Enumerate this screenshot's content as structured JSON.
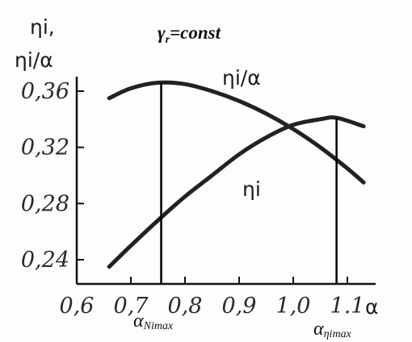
{
  "chart_data": {
    "type": "line",
    "title": "γr=const",
    "title_main": "γ",
    "title_sub": "r",
    "title_rest": "=const",
    "ylabel_line1": "ηi,",
    "ylabel_line2": "ηi/α",
    "xlabel": "α",
    "x_ticks": [
      "0,6",
      "0,7",
      "0,8",
      "0,9",
      "1,0",
      "1.1"
    ],
    "x_tick_values": [
      0.6,
      0.7,
      0.8,
      0.9,
      1.0,
      1.1
    ],
    "y_ticks": [
      "0,36",
      "0,32",
      "0,28",
      "0,24"
    ],
    "y_tick_values": [
      0.36,
      0.32,
      0.28,
      0.24
    ],
    "xlim": [
      0.6,
      1.15
    ],
    "ylim": [
      0.22,
      0.38
    ],
    "grid": false,
    "series": [
      {
        "name": "ηi/α",
        "x": [
          0.66,
          0.7,
          0.75,
          0.8,
          0.85,
          0.9,
          0.95,
          1.0,
          1.05,
          1.1,
          1.13
        ],
        "y": [
          0.355,
          0.362,
          0.366,
          0.365,
          0.36,
          0.353,
          0.344,
          0.333,
          0.32,
          0.305,
          0.295
        ]
      },
      {
        "name": "ηi",
        "x": [
          0.66,
          0.7,
          0.75,
          0.8,
          0.85,
          0.9,
          0.95,
          1.0,
          1.05,
          1.08,
          1.13
        ],
        "y": [
          0.235,
          0.25,
          0.268,
          0.285,
          0.3,
          0.315,
          0.327,
          0.336,
          0.34,
          0.341,
          0.335
        ]
      }
    ],
    "annotations": [
      {
        "label_main": "α",
        "label_sub": "Nimax",
        "x": 0.756
      },
      {
        "label_main": "α",
        "label_sub": "ηimax",
        "x": 1.08
      }
    ]
  }
}
